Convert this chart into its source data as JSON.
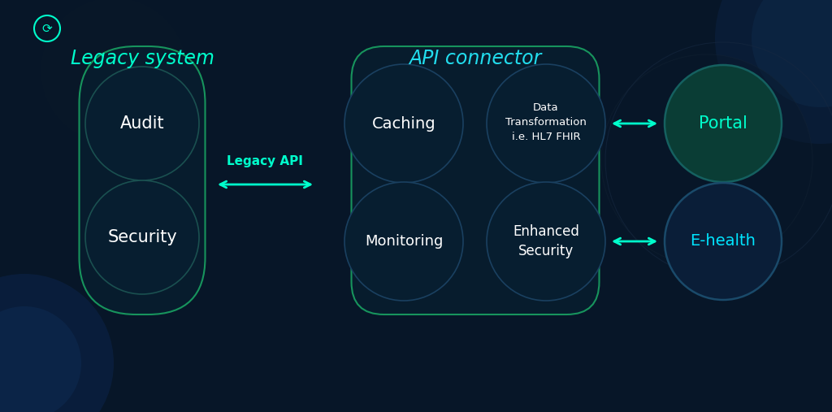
{
  "bg_color": "#071628",
  "title_legacy": "Legacy system",
  "title_api": "API connector",
  "title_color_legacy": "#00ffcc",
  "title_color_api": "#22ddee",
  "title_fontsize": 17,
  "white_text_color": "#ffffff",
  "cyan_green_color": "#00ffcc",
  "cyan_blue_color": "#00e5ff",
  "arrow_color": "#00ffcc",
  "node_fill": "#071e30",
  "node_stroke": "#1a5050",
  "node_stroke_light": "#1a4060",
  "container_fill": "#071e2e",
  "container_stroke_legacy": "#1aaa66",
  "container_stroke_api": "#1aaa66",
  "portal_fill": "#0a3d35",
  "portal_stroke": "#156060",
  "ehealth_fill": "#0a1e38",
  "ehealth_stroke": "#1a4a6a",
  "legacy_api_label": "Legacy API",
  "fig_width": 10.24,
  "fig_height": 5.07,
  "dpi": 100
}
